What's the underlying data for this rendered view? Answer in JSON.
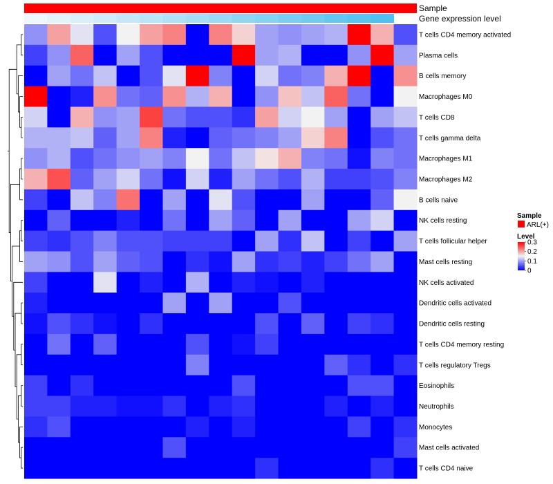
{
  "chart_data": {
    "type": "heatmap",
    "title": "",
    "annotations": [
      {
        "name": "Sample",
        "label": "Sample"
      },
      {
        "name": "Gene expression level",
        "label": "Gene expression level"
      }
    ],
    "gene_expression_level": [
      0.0,
      0.0667,
      0.1333,
      0.2,
      0.2667,
      0.3333,
      0.4,
      0.4667,
      0.5333,
      0.6,
      0.6667,
      0.7333,
      0.8,
      0.8667,
      0.9333,
      1.0
    ],
    "rows": [
      "T cells CD4 memory activated",
      "Plasma cells",
      "B cells memory",
      "Macrophages M0",
      "T cells CD8",
      "T cells gamma delta",
      "Macrophages M1",
      "Macrophages M2",
      "B cells naive",
      "NK cells resting",
      "T cells follicular helper",
      "Mast cells resting",
      "NK cells activated",
      "Dendritic cells activated",
      "Dendritic cells resting",
      "T cells CD4 memory resting",
      "T cells regulatory  Tregs",
      "Eosinophils",
      "Neutrophils",
      "Monocytes",
      "Mast cells activated",
      "T cells CD4 naive"
    ],
    "values": [
      [
        0.09,
        0.2,
        0.14,
        0.05,
        0.15,
        0.2,
        0.22,
        0.0,
        0.22,
        0.17,
        0.1,
        0.09,
        0.1,
        0.11,
        0.3,
        0.19,
        0.05
      ],
      [
        0.04,
        0.09,
        0.24,
        0.0,
        0.1,
        0.05,
        0.0,
        0.0,
        0.0,
        0.3,
        0.1,
        0.11,
        0.0,
        0.0,
        0.09,
        0.3,
        0.1
      ],
      [
        0.0,
        0.1,
        0.07,
        0.12,
        0.0,
        0.05,
        0.14,
        0.3,
        0.08,
        0.0,
        0.13,
        0.07,
        0.08,
        0.19,
        0.3,
        0.0,
        0.21
      ],
      [
        0.3,
        0.0,
        0.02,
        0.21,
        0.07,
        0.06,
        0.21,
        0.11,
        0.19,
        0.0,
        0.09,
        0.18,
        0.12,
        0.24,
        0.07,
        0.0,
        0.15
      ],
      [
        0.13,
        0.0,
        0.19,
        0.09,
        0.1,
        0.26,
        0.07,
        0.05,
        0.05,
        0.03,
        0.2,
        0.13,
        0.15,
        0.1,
        0.0,
        0.1,
        0.12
      ],
      [
        0.11,
        0.11,
        0.12,
        0.06,
        0.1,
        0.22,
        0.02,
        0.0,
        0.06,
        0.07,
        0.08,
        0.1,
        0.17,
        0.22,
        0.0,
        0.05,
        0.07
      ],
      [
        0.09,
        0.11,
        0.05,
        0.07,
        0.09,
        0.1,
        0.08,
        0.15,
        0.07,
        0.12,
        0.16,
        0.19,
        0.08,
        0.07,
        0.01,
        0.08,
        0.07
      ],
      [
        0.19,
        0.25,
        0.06,
        0.1,
        0.13,
        0.07,
        0.01,
        0.13,
        0.02,
        0.1,
        0.07,
        0.05,
        0.11,
        0.04,
        0.04,
        0.05,
        0.08
      ],
      [
        0.04,
        0.0,
        0.12,
        0.08,
        0.23,
        0.0,
        0.1,
        0.0,
        0.14,
        0.05,
        0.0,
        0.0,
        0.1,
        0.0,
        0.0,
        0.06,
        0.15
      ],
      [
        0.0,
        0.06,
        0.0,
        0.0,
        0.02,
        0.0,
        0.07,
        0.0,
        0.1,
        0.06,
        0.0,
        0.1,
        0.0,
        0.0,
        0.1,
        0.13,
        0.0
      ],
      [
        0.04,
        0.03,
        0.05,
        0.08,
        0.05,
        0.05,
        0.04,
        0.04,
        0.04,
        0.0,
        0.1,
        0.03,
        0.12,
        0.0,
        0.04,
        0.0,
        0.1
      ],
      [
        0.1,
        0.09,
        0.05,
        0.1,
        0.06,
        0.05,
        0.0,
        0.03,
        0.01,
        0.1,
        0.03,
        0.04,
        0.02,
        0.04,
        0.07,
        0.1,
        0.0
      ],
      [
        0.04,
        0.0,
        0.0,
        0.14,
        0.0,
        0.02,
        0.0,
        0.11,
        0.0,
        0.02,
        0.01,
        0.0,
        0.02,
        0.0,
        0.0,
        0.0,
        0.0
      ],
      [
        0.02,
        0.0,
        0.0,
        0.0,
        0.0,
        0.0,
        0.1,
        0.0,
        0.1,
        0.0,
        0.0,
        0.05,
        0.0,
        0.0,
        0.0,
        0.0,
        0.0
      ],
      [
        0.01,
        0.05,
        0.03,
        0.01,
        0.0,
        0.03,
        0.0,
        0.0,
        0.0,
        0.0,
        0.05,
        0.0,
        0.06,
        0.0,
        0.04,
        0.03,
        0.0
      ],
      [
        0.0,
        0.07,
        0.0,
        0.06,
        0.0,
        0.0,
        0.0,
        0.05,
        0.0,
        0.01,
        0.04,
        0.0,
        0.0,
        0.0,
        0.0,
        0.0,
        0.0
      ],
      [
        0.0,
        0.0,
        0.0,
        0.0,
        0.0,
        0.0,
        0.0,
        0.08,
        0.0,
        0.0,
        0.0,
        0.0,
        0.0,
        0.06,
        0.03,
        0.0,
        0.03
      ],
      [
        0.04,
        0.0,
        0.03,
        0.0,
        0.0,
        0.0,
        0.0,
        0.0,
        0.0,
        0.05,
        0.0,
        0.0,
        0.0,
        0.0,
        0.05,
        0.05,
        0.0
      ],
      [
        0.04,
        0.04,
        0.02,
        0.02,
        0.01,
        0.01,
        0.03,
        0.0,
        0.02,
        0.03,
        0.0,
        0.0,
        0.0,
        0.02,
        0.0,
        0.02,
        0.0
      ],
      [
        0.03,
        0.05,
        0.0,
        0.0,
        0.0,
        0.0,
        0.0,
        0.02,
        0.0,
        0.02,
        0.0,
        0.0,
        0.0,
        0.0,
        0.04,
        0.0,
        0.03
      ],
      [
        0.0,
        0.0,
        0.0,
        0.0,
        0.0,
        0.0,
        0.05,
        0.0,
        0.0,
        0.0,
        0.0,
        0.0,
        0.0,
        0.0,
        0.0,
        0.0,
        0.04
      ],
      [
        0.0,
        0.0,
        0.0,
        0.0,
        0.0,
        0.0,
        0.0,
        0.0,
        0.0,
        0.0,
        0.03,
        0.0,
        0.0,
        0.0,
        0.0,
        0.03,
        0.0
      ]
    ],
    "color_scale": {
      "min": 0,
      "mid": 0.15,
      "max": 0.3,
      "low": "#0000ff",
      "mid_color": "#f2f2f2",
      "high": "#ff0000"
    },
    "sample_color": "#ff0000",
    "expr_low_color": "#eef7fc",
    "expr_high_color": "#4fc0f0",
    "legend_sample": {
      "title": "Sample",
      "entries": [
        {
          "label": "ARL(+)",
          "color": "#ff0000"
        }
      ]
    },
    "legend_level": {
      "title": "Level",
      "ticks": [
        "0.3",
        "0.2",
        "0.1",
        "0"
      ],
      "tick_values": [
        0.3,
        0.2,
        0.1,
        0
      ]
    }
  }
}
